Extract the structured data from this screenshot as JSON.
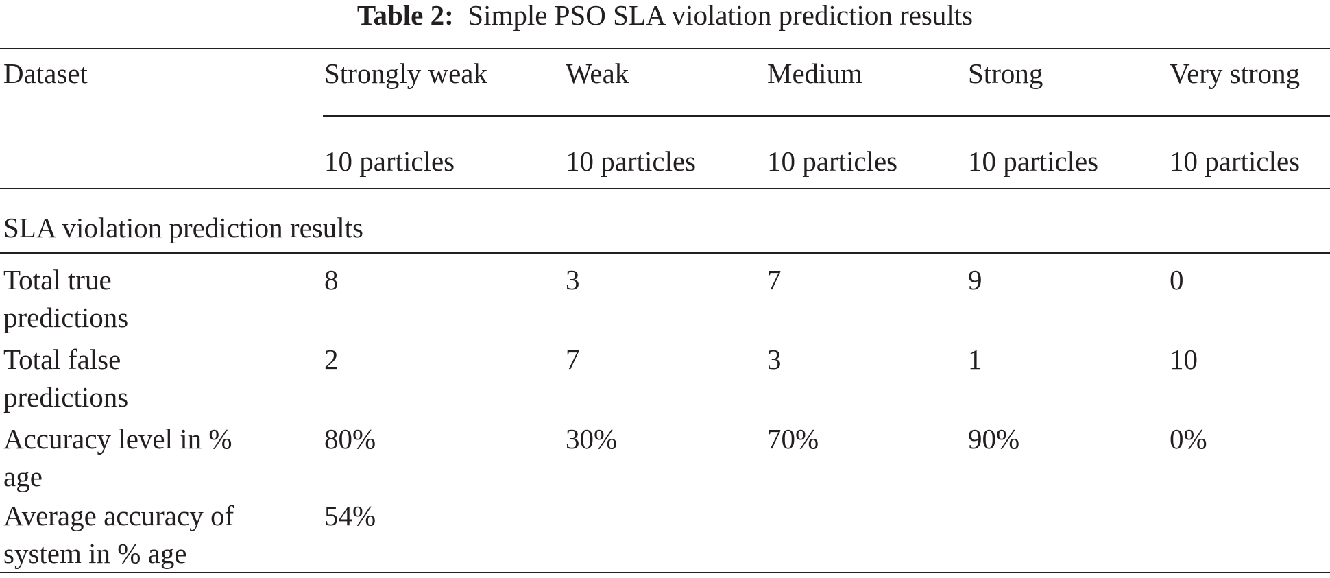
{
  "caption": {
    "label": "Table 2:",
    "text": "Simple PSO SLA violation prediction results"
  },
  "header": {
    "dataset_label": "Dataset",
    "columns": [
      "Strongly weak",
      "Weak",
      "Medium",
      "Strong",
      "Very strong"
    ],
    "subheaders": [
      "10 particles",
      "10 particles",
      "10 particles",
      "10 particles",
      "10 particles"
    ]
  },
  "group_label": "SLA violation prediction results",
  "rows": [
    {
      "label_lines": [
        "Total true",
        "predictions"
      ],
      "values": [
        "8",
        "3",
        "7",
        "9",
        "0"
      ]
    },
    {
      "label_lines": [
        "Total false",
        "predictions"
      ],
      "values": [
        "2",
        "7",
        "3",
        "1",
        "10"
      ]
    },
    {
      "label_lines": [
        "Accuracy level in %",
        "age"
      ],
      "values": [
        "80%",
        "30%",
        "70%",
        "90%",
        "0%"
      ]
    },
    {
      "label_lines": [
        "Average accuracy of",
        "system in % age"
      ],
      "values": [
        "54%"
      ]
    }
  ]
}
